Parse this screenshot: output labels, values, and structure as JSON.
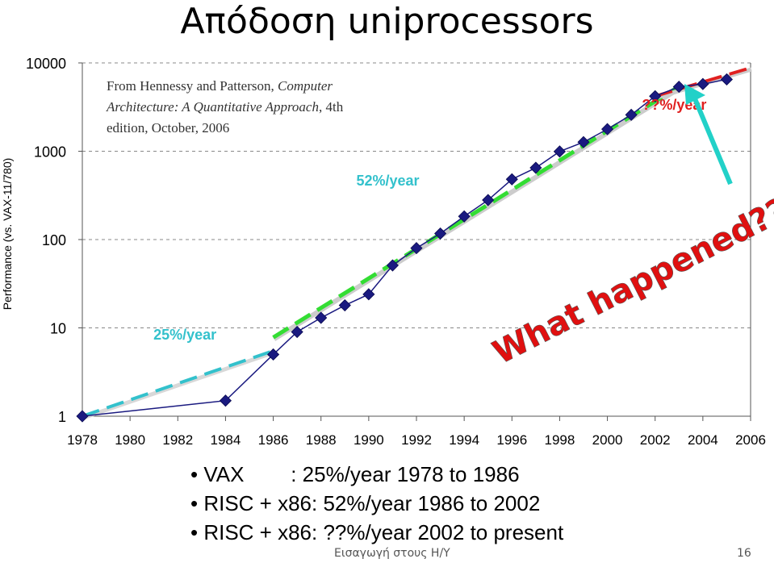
{
  "slide": {
    "title": "Απόδοση uniprocessors",
    "bullets": [
      "• VAX        : 25%/year 1978 to 1986",
      "• RISC + x86: 52%/year 1986 to 2002",
      "• RISC + x86: ??%/year 2002 to present"
    ],
    "footer_course": "Εισαγωγή στους Η/Υ",
    "page_number": "16",
    "colors": {
      "series": "#1a1a80",
      "marker": "#1a1a80",
      "vax_trend": "#33c1cc",
      "risc_trend": "#33dd33",
      "recent_trend": "#e02020",
      "annotation_red": "#e01010",
      "arrow": "#22d1c8",
      "grid": "#888888"
    }
  },
  "chart_data": {
    "type": "line",
    "yscale": "log",
    "ylabel": "Performance (vs. VAX-11/780)",
    "ylim": [
      1,
      10000
    ],
    "yticks": [
      "1",
      "10",
      "100",
      "1000",
      "10000"
    ],
    "xlim": [
      1978,
      2006
    ],
    "xticks": [
      "1978",
      "1980",
      "1982",
      "1984",
      "1986",
      "1988",
      "1990",
      "1992",
      "1994",
      "1996",
      "1998",
      "2000",
      "2002",
      "2004",
      "2006"
    ],
    "grid": "horizontal dashed",
    "series": [
      {
        "x": [
          1978,
          1984,
          1986,
          1987,
          1988,
          1989,
          1990,
          1991,
          1992,
          1993,
          1994,
          1995,
          1996,
          1997,
          1998,
          1999,
          2000,
          2001,
          2002,
          2003,
          2004,
          2005
        ],
        "values": [
          1,
          1.5,
          5,
          9,
          13,
          18,
          24,
          51,
          80,
          117,
          183,
          280,
          481,
          649,
          993,
          1267,
          1779,
          2584,
          4195,
          5364,
          5764,
          6505
        ]
      }
    ],
    "trend_lines": [
      {
        "label": "25%/year",
        "x": [
          1978,
          1986
        ],
        "y": [
          1,
          5.5
        ]
      },
      {
        "label": "52%/year",
        "x": [
          1986,
          2003
        ],
        "y": [
          7.8,
          5400
        ]
      },
      {
        "label": "??%/year",
        "x": [
          2002,
          2006
        ],
        "y": [
          4200,
          8800
        ]
      }
    ],
    "source_note": [
      "From Hennessy and Patterson, ",
      "Computer",
      "Architecture: A Quantitative Approach",
      ", 4th",
      "edition, October, 2006"
    ],
    "annotation": "What happened????"
  }
}
